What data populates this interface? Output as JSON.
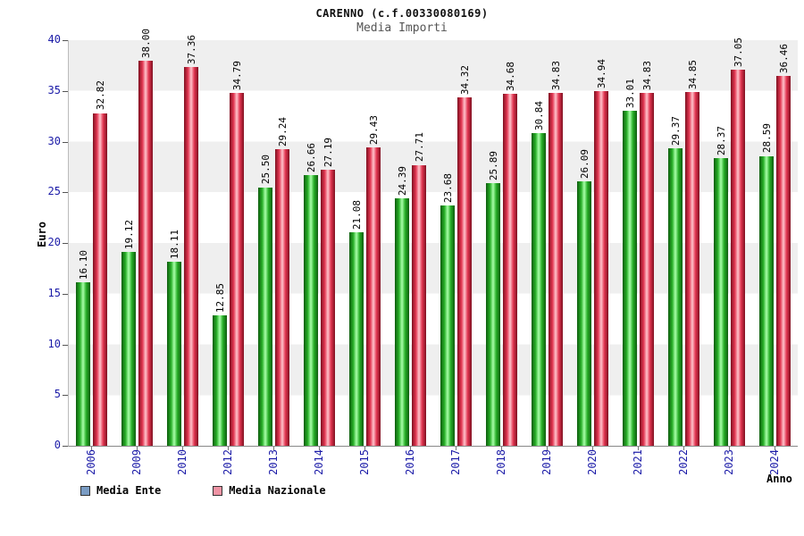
{
  "header": {
    "title": "CARENNO (c.f.00330080169)",
    "subtitle": "Media Importi"
  },
  "axes": {
    "y_label": "Euro",
    "x_label": "Anno"
  },
  "legend": {
    "items": [
      {
        "label": "Media Ente",
        "swatch": "#7a9cc4"
      },
      {
        "label": "Media Nazionale",
        "swatch": "#ef93a4"
      }
    ]
  },
  "chart_data": {
    "type": "bar",
    "title": "CARENNO (c.f.00330080169)",
    "subtitle": "Media Importi",
    "xlabel": "Anno",
    "ylabel": "Euro",
    "ylim": [
      0,
      40
    ],
    "ytick_step": 5,
    "grid": true,
    "legend_position": "bottom",
    "categories": [
      "2006",
      "2009",
      "2010",
      "2012",
      "2013",
      "2014",
      "2015",
      "2016",
      "2017",
      "2018",
      "2019",
      "2020",
      "2021",
      "2022",
      "2023",
      "2024"
    ],
    "series": [
      {
        "name": "Media Ente",
        "color": "#33cc33",
        "values": [
          16.1,
          19.12,
          18.11,
          12.85,
          25.5,
          26.66,
          21.08,
          24.39,
          23.68,
          25.89,
          30.84,
          26.09,
          33.01,
          29.37,
          28.37,
          28.59
        ]
      },
      {
        "name": "Media Nazionale",
        "color": "#e23550",
        "values": [
          32.82,
          38.0,
          37.36,
          34.79,
          29.24,
          27.19,
          29.43,
          27.71,
          34.32,
          34.68,
          34.83,
          34.94,
          34.83,
          34.85,
          37.05,
          36.46
        ]
      }
    ]
  }
}
